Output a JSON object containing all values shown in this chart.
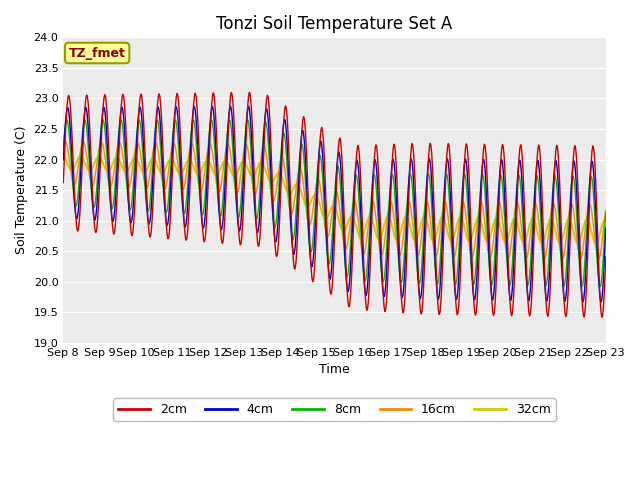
{
  "title": "Tonzi Soil Temperature Set A",
  "xlabel": "Time",
  "ylabel": "Soil Temperature (C)",
  "annotation": "TZ_fmet",
  "ylim": [
    19.0,
    24.0
  ],
  "yticks": [
    19.0,
    19.5,
    20.0,
    20.5,
    21.0,
    21.5,
    22.0,
    22.5,
    23.0,
    23.5,
    24.0
  ],
  "xtick_labels": [
    "Sep 8",
    "Sep 9",
    "Sep 10",
    "Sep 11",
    "Sep 12",
    "Sep 13",
    "Sep 14",
    "Sep 15",
    "Sep 16",
    "Sep 17",
    "Sep 18",
    "Sep 19",
    "Sep 20",
    "Sep 21",
    "Sep 22",
    "Sep 23"
  ],
  "colors": {
    "2cm": "#CC0000",
    "4cm": "#0000CC",
    "8cm": "#00BB00",
    "16cm": "#FF8800",
    "32cm": "#CCCC00"
  },
  "bg_color": "#EBEBEB",
  "grid_color": "#FFFFFF",
  "title_fontsize": 12,
  "axis_label_fontsize": 9,
  "tick_fontsize": 8,
  "legend_labels": [
    "2cm",
    "4cm",
    "8cm",
    "16cm",
    "32cm"
  ]
}
